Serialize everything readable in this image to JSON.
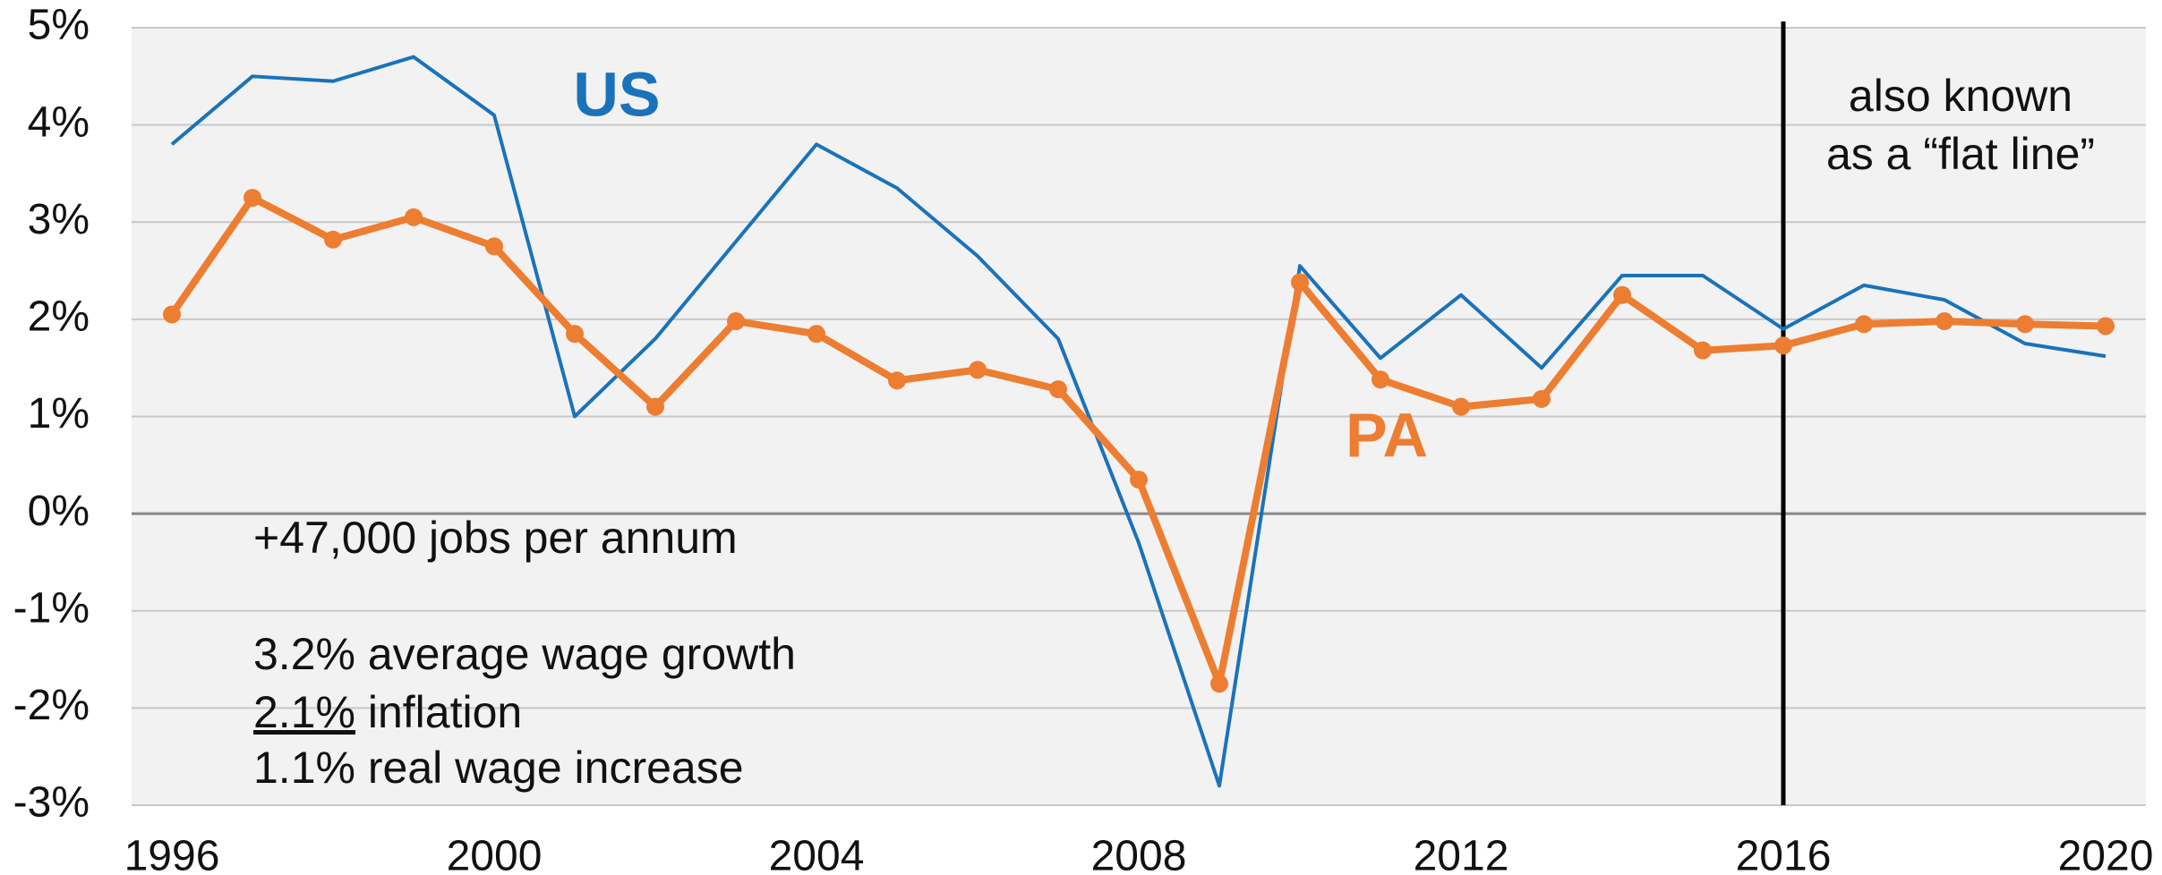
{
  "chart_data": {
    "type": "line",
    "x": [
      1996,
      1997,
      1998,
      1999,
      2000,
      2001,
      2002,
      2003,
      2004,
      2005,
      2006,
      2007,
      2008,
      2009,
      2010,
      2011,
      2012,
      2013,
      2014,
      2015,
      2016,
      2017,
      2018,
      2019,
      2020
    ],
    "series": [
      {
        "name": "US",
        "color": "#1a72bb",
        "markers": false,
        "values": [
          3.8,
          4.5,
          4.45,
          4.7,
          4.1,
          1.0,
          1.8,
          2.8,
          3.8,
          3.35,
          2.65,
          1.8,
          -0.3,
          -2.8,
          2.55,
          1.6,
          2.25,
          1.5,
          2.45,
          2.45,
          1.9,
          2.35,
          2.2,
          1.75,
          1.62
        ]
      },
      {
        "name": "PA",
        "color": "#ed7d31",
        "markers": true,
        "values": [
          2.05,
          3.25,
          2.82,
          3.05,
          2.75,
          1.85,
          1.1,
          1.98,
          1.85,
          1.37,
          1.48,
          1.28,
          0.35,
          -1.75,
          2.38,
          1.38,
          1.1,
          1.18,
          2.25,
          1.68,
          1.73,
          1.95,
          1.98,
          1.95,
          1.93
        ]
      }
    ],
    "xlim": [
      1995.5,
      2020.5
    ],
    "xticks": [
      1996,
      2000,
      2004,
      2008,
      2012,
      2016,
      2020
    ],
    "ylim": [
      -3,
      5
    ],
    "yticks": [
      {
        "value": -3,
        "label": "-3%"
      },
      {
        "value": -2,
        "label": "-2%"
      },
      {
        "value": -1,
        "label": "-1%"
      },
      {
        "value": 0,
        "label": "0%"
      },
      {
        "value": 1,
        "label": "1%"
      },
      {
        "value": 2,
        "label": "2%"
      },
      {
        "value": 3,
        "label": "3%"
      },
      {
        "value": 4,
        "label": "4%"
      },
      {
        "value": 5,
        "label": "5%"
      }
    ],
    "grid": true,
    "vline": 2016,
    "annotations": {
      "flat_line": [
        "also known",
        "as a “flat line”"
      ],
      "jobs": "+47,000 jobs per annum",
      "wage": "3.2% average wage growth",
      "inflation": [
        "2.1%",
        " inflation"
      ],
      "real": "1.1% real wage increase"
    }
  }
}
